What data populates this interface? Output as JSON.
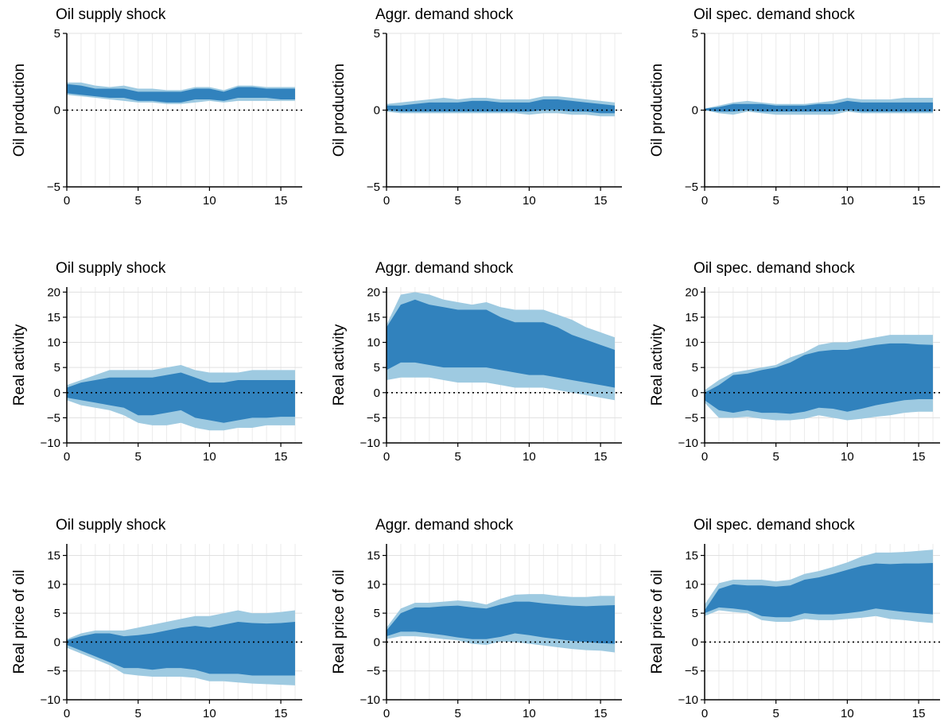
{
  "chart_data": [
    {
      "type": "band",
      "title": "Oil supply shock",
      "ylabel": "Oil production",
      "x": [
        0,
        1,
        2,
        3,
        4,
        5,
        6,
        7,
        8,
        9,
        10,
        11,
        12,
        13,
        14,
        15,
        16
      ],
      "xlim": [
        0,
        16.5
      ],
      "xticks": [
        0,
        5,
        10,
        15
      ],
      "ylim": [
        -5,
        5
      ],
      "yticks": [
        {
          "value": -5,
          "label": "−5"
        },
        0,
        5
      ],
      "grid": true,
      "reference_line": 0,
      "series": [
        {
          "color": "#9ecae1",
          "lower": [
            1.0,
            0.9,
            0.8,
            0.7,
            0.6,
            0.5,
            0.5,
            0.4,
            0.4,
            0.5,
            0.6,
            0.5,
            0.6,
            0.6,
            0.6,
            0.6,
            0.6
          ],
          "upper": [
            1.8,
            1.8,
            1.6,
            1.5,
            1.6,
            1.4,
            1.4,
            1.3,
            1.3,
            1.5,
            1.5,
            1.3,
            1.6,
            1.6,
            1.5,
            1.5,
            1.5
          ]
        },
        {
          "color": "#3182bd",
          "lower": [
            1.1,
            1.0,
            0.9,
            0.8,
            0.8,
            0.6,
            0.6,
            0.5,
            0.5,
            0.7,
            0.7,
            0.6,
            0.8,
            0.8,
            0.8,
            0.7,
            0.7
          ],
          "upper": [
            1.7,
            1.6,
            1.4,
            1.4,
            1.4,
            1.2,
            1.2,
            1.2,
            1.2,
            1.4,
            1.4,
            1.2,
            1.5,
            1.5,
            1.4,
            1.4,
            1.4
          ]
        }
      ]
    },
    {
      "type": "band",
      "title": "Aggr. demand shock",
      "ylabel": "Oil production",
      "x": [
        0,
        1,
        2,
        3,
        4,
        5,
        6,
        7,
        8,
        9,
        10,
        11,
        12,
        13,
        14,
        15,
        16
      ],
      "xlim": [
        0,
        16.5
      ],
      "xticks": [
        0,
        5,
        10,
        15
      ],
      "ylim": [
        -5,
        5
      ],
      "yticks": [
        {
          "value": -5,
          "label": "−5"
        },
        0,
        5
      ],
      "grid": true,
      "reference_line": 0,
      "series": [
        {
          "color": "#9ecae1",
          "lower": [
            -0.1,
            -0.2,
            -0.2,
            -0.2,
            -0.2,
            -0.2,
            -0.2,
            -0.2,
            -0.2,
            -0.2,
            -0.3,
            -0.2,
            -0.2,
            -0.3,
            -0.3,
            -0.4,
            -0.4
          ],
          "upper": [
            0.4,
            0.5,
            0.6,
            0.7,
            0.8,
            0.7,
            0.8,
            0.8,
            0.7,
            0.7,
            0.7,
            0.9,
            0.9,
            0.8,
            0.7,
            0.6,
            0.5
          ]
        },
        {
          "color": "#3182bd",
          "lower": [
            0.0,
            -0.1,
            -0.1,
            -0.1,
            -0.1,
            -0.1,
            -0.1,
            -0.1,
            -0.1,
            -0.1,
            -0.1,
            0.0,
            0.0,
            -0.1,
            -0.1,
            -0.2,
            -0.2
          ],
          "upper": [
            0.3,
            0.3,
            0.4,
            0.5,
            0.5,
            0.5,
            0.6,
            0.6,
            0.5,
            0.5,
            0.5,
            0.7,
            0.7,
            0.6,
            0.5,
            0.4,
            0.3
          ]
        }
      ]
    },
    {
      "type": "band",
      "title": "Oil spec. demand shock",
      "ylabel": "Oil production",
      "x": [
        0,
        1,
        2,
        3,
        4,
        5,
        6,
        7,
        8,
        9,
        10,
        11,
        12,
        13,
        14,
        15,
        16
      ],
      "xlim": [
        0,
        16.5
      ],
      "xticks": [
        0,
        5,
        10,
        15
      ],
      "ylim": [
        -5,
        5
      ],
      "yticks": [
        {
          "value": -5,
          "label": "−5"
        },
        0,
        5
      ],
      "grid": true,
      "reference_line": 0,
      "series": [
        {
          "color": "#9ecae1",
          "lower": [
            0.0,
            -0.2,
            -0.3,
            -0.1,
            -0.2,
            -0.3,
            -0.3,
            -0.3,
            -0.3,
            -0.3,
            -0.1,
            -0.2,
            -0.2,
            -0.2,
            -0.2,
            -0.2,
            -0.2
          ],
          "upper": [
            0.1,
            0.3,
            0.5,
            0.6,
            0.5,
            0.4,
            0.4,
            0.4,
            0.5,
            0.6,
            0.8,
            0.7,
            0.7,
            0.7,
            0.8,
            0.8,
            0.8
          ]
        },
        {
          "color": "#3182bd",
          "lower": [
            0.0,
            -0.1,
            -0.1,
            0.0,
            -0.1,
            -0.1,
            -0.1,
            -0.1,
            -0.1,
            -0.1,
            0.0,
            -0.1,
            -0.1,
            -0.1,
            -0.1,
            -0.1,
            -0.1
          ],
          "upper": [
            0.1,
            0.2,
            0.4,
            0.4,
            0.4,
            0.3,
            0.3,
            0.3,
            0.4,
            0.4,
            0.6,
            0.5,
            0.5,
            0.5,
            0.5,
            0.5,
            0.5
          ]
        }
      ]
    },
    {
      "type": "band",
      "title": "Oil supply shock",
      "ylabel": "Real activity",
      "x": [
        0,
        1,
        2,
        3,
        4,
        5,
        6,
        7,
        8,
        9,
        10,
        11,
        12,
        13,
        14,
        15,
        16
      ],
      "xlim": [
        0,
        16.5
      ],
      "xticks": [
        0,
        5,
        10,
        15
      ],
      "ylim": [
        -10,
        21
      ],
      "yticks": [
        {
          "value": -10,
          "label": "−10"
        },
        {
          "value": -5,
          "label": "−5"
        },
        0,
        5,
        10,
        15,
        20
      ],
      "grid": true,
      "reference_line": 0,
      "series": [
        {
          "color": "#9ecae1",
          "lower": [
            -1.5,
            -2.5,
            -3,
            -3.5,
            -4.5,
            -6,
            -6.5,
            -6.5,
            -6,
            -7,
            -7.5,
            -7.5,
            -7,
            -7,
            -6.5,
            -6.5,
            -6.5
          ],
          "upper": [
            1.5,
            2.5,
            3.5,
            4.5,
            4.5,
            4.5,
            4.5,
            5,
            5.5,
            4.5,
            4,
            4,
            4,
            4.5,
            4.5,
            4.5,
            4.5
          ]
        },
        {
          "color": "#3182bd",
          "lower": [
            -1,
            -1.5,
            -2,
            -2.5,
            -3,
            -4.5,
            -4.5,
            -4,
            -3.5,
            -5,
            -5.5,
            -6,
            -5.5,
            -5,
            -5,
            -4.8,
            -4.8
          ],
          "upper": [
            1,
            2,
            2.5,
            3,
            3,
            3,
            3,
            3.5,
            4,
            3,
            2,
            2,
            2.5,
            2.5,
            2.5,
            2.5,
            2.5
          ]
        }
      ]
    },
    {
      "type": "band",
      "title": "Aggr. demand shock",
      "ylabel": "Real activity",
      "x": [
        0,
        1,
        2,
        3,
        4,
        5,
        6,
        7,
        8,
        9,
        10,
        11,
        12,
        13,
        14,
        15,
        16
      ],
      "xlim": [
        0,
        16.5
      ],
      "xticks": [
        0,
        5,
        10,
        15
      ],
      "ylim": [
        -10,
        21
      ],
      "yticks": [
        {
          "value": -10,
          "label": "−10"
        },
        {
          "value": -5,
          "label": "−5"
        },
        0,
        5,
        10,
        15,
        20
      ],
      "grid": true,
      "reference_line": 0,
      "series": [
        {
          "color": "#9ecae1",
          "lower": [
            2.5,
            3,
            3,
            3,
            2.5,
            2,
            2,
            2,
            1.5,
            1,
            1,
            1,
            0.5,
            0,
            -0.5,
            -1,
            -1.5
          ],
          "upper": [
            13.5,
            19.5,
            20,
            19.5,
            18.5,
            18,
            17.5,
            18,
            17,
            16.5,
            16.5,
            16.5,
            15.5,
            14.5,
            13,
            12,
            11
          ]
        },
        {
          "color": "#3182bd",
          "lower": [
            4.5,
            6,
            6,
            5.5,
            5,
            5,
            5,
            5,
            4.5,
            4,
            3.5,
            3.5,
            3,
            2.5,
            2,
            1.5,
            1
          ],
          "upper": [
            13,
            17.5,
            18.5,
            17.5,
            17,
            16.5,
            16.5,
            16.5,
            15,
            14,
            14,
            14,
            13,
            11.5,
            10.5,
            9.5,
            8.5
          ]
        }
      ]
    },
    {
      "type": "band",
      "title": "Oil spec. demand shock",
      "ylabel": "Real activity",
      "x": [
        0,
        1,
        2,
        3,
        4,
        5,
        6,
        7,
        8,
        9,
        10,
        11,
        12,
        13,
        14,
        15,
        16
      ],
      "xlim": [
        0,
        16.5
      ],
      "xticks": [
        0,
        5,
        10,
        15
      ],
      "ylim": [
        -10,
        21
      ],
      "yticks": [
        {
          "value": -10,
          "label": "−10"
        },
        {
          "value": -5,
          "label": "−5"
        },
        0,
        5,
        10,
        15,
        20
      ],
      "grid": true,
      "reference_line": 0,
      "series": [
        {
          "color": "#9ecae1",
          "lower": [
            -2,
            -5,
            -5,
            -4.8,
            -5.2,
            -5.5,
            -5.5,
            -5.2,
            -4.5,
            -5,
            -5.5,
            -5.2,
            -4.8,
            -4.5,
            -4,
            -3.8,
            -3.8
          ],
          "upper": [
            0.5,
            2.5,
            4,
            4.5,
            5,
            5.5,
            7,
            8,
            9.5,
            10,
            10,
            10.5,
            11,
            11.5,
            11.5,
            11.5,
            11.5
          ]
        },
        {
          "color": "#3182bd",
          "lower": [
            -1.5,
            -3.5,
            -4,
            -3.5,
            -4,
            -4,
            -4.2,
            -3.8,
            -3,
            -3.2,
            -3.8,
            -3.2,
            -2.5,
            -2,
            -1.5,
            -1.3,
            -1.3
          ],
          "upper": [
            0,
            1.5,
            3.5,
            3.8,
            4.5,
            5,
            6,
            7.5,
            8.2,
            8.5,
            8.5,
            9,
            9.5,
            9.8,
            9.8,
            9.6,
            9.5
          ]
        }
      ]
    },
    {
      "type": "band",
      "title": "Oil supply shock",
      "ylabel": "Real price of oil",
      "x": [
        0,
        1,
        2,
        3,
        4,
        5,
        6,
        7,
        8,
        9,
        10,
        11,
        12,
        13,
        14,
        15,
        16
      ],
      "xlim": [
        0,
        16.5
      ],
      "xticks": [
        0,
        5,
        10,
        15
      ],
      "ylim": [
        -10,
        17
      ],
      "yticks": [
        {
          "value": -10,
          "label": "−10"
        },
        {
          "value": -5,
          "label": "−5"
        },
        0,
        5,
        10,
        15
      ],
      "grid": true,
      "reference_line": 0,
      "series": [
        {
          "color": "#9ecae1",
          "lower": [
            -1,
            -2,
            -3,
            -4,
            -5.5,
            -5.8,
            -6,
            -6,
            -6,
            -6.2,
            -6.8,
            -6.8,
            -7,
            -7.2,
            -7.3,
            -7.4,
            -7.5
          ],
          "upper": [
            0.5,
            1.5,
            2,
            2,
            2,
            2.5,
            3,
            3.5,
            4,
            4.5,
            4.5,
            5,
            5.5,
            5,
            5,
            5.2,
            5.5
          ]
        },
        {
          "color": "#3182bd",
          "lower": [
            -0.5,
            -1.5,
            -2.5,
            -3.5,
            -4.5,
            -4.5,
            -4.8,
            -4.5,
            -4.5,
            -4.8,
            -5.5,
            -5.5,
            -5.5,
            -5.8,
            -5.8,
            -5.8,
            -5.8
          ],
          "upper": [
            0.3,
            1,
            1.5,
            1.5,
            1,
            1.2,
            1.5,
            2,
            2.5,
            2.8,
            2.5,
            3,
            3.5,
            3.3,
            3.2,
            3.3,
            3.5
          ]
        }
      ]
    },
    {
      "type": "band",
      "title": "Aggr. demand shock",
      "ylabel": "Real price of oil",
      "x": [
        0,
        1,
        2,
        3,
        4,
        5,
        6,
        7,
        8,
        9,
        10,
        11,
        12,
        13,
        14,
        15,
        16
      ],
      "xlim": [
        0,
        16.5
      ],
      "xticks": [
        0,
        5,
        10,
        15
      ],
      "ylim": [
        -10,
        17
      ],
      "yticks": [
        {
          "value": -10,
          "label": "−10"
        },
        {
          "value": -5,
          "label": "−5"
        },
        0,
        5,
        10,
        15
      ],
      "grid": true,
      "reference_line": 0,
      "series": [
        {
          "color": "#9ecae1",
          "lower": [
            0.5,
            1,
            1,
            0.8,
            0.5,
            0.3,
            -0.3,
            -0.5,
            0.1,
            0,
            -0.3,
            -0.6,
            -0.9,
            -1.2,
            -1.4,
            -1.5,
            -1.8
          ],
          "upper": [
            2.5,
            5.8,
            6.8,
            6.8,
            7,
            7.2,
            7,
            6.5,
            7.5,
            8.2,
            8.3,
            8.3,
            8,
            7.8,
            7.8,
            8,
            8
          ]
        },
        {
          "color": "#3182bd",
          "lower": [
            1,
            1.8,
            1.8,
            1.5,
            1.2,
            0.8,
            0.5,
            0.5,
            0.9,
            1.5,
            1.2,
            0.8,
            0.5,
            0.2,
            0,
            -0.2,
            -0.3
          ],
          "upper": [
            2,
            5,
            6,
            6,
            6.2,
            6.3,
            6,
            5.8,
            6.5,
            7,
            7,
            6.7,
            6.5,
            6.3,
            6.2,
            6.3,
            6.4
          ]
        }
      ]
    },
    {
      "type": "band",
      "title": "Oil spec. demand shock",
      "ylabel": "Real price of oil",
      "x": [
        0,
        1,
        2,
        3,
        4,
        5,
        6,
        7,
        8,
        9,
        10,
        11,
        12,
        13,
        14,
        15,
        16
      ],
      "xlim": [
        0,
        16.5
      ],
      "xticks": [
        0,
        5,
        10,
        15
      ],
      "ylim": [
        -10,
        17
      ],
      "yticks": [
        {
          "value": -10,
          "label": "−10"
        },
        {
          "value": -5,
          "label": "−5"
        },
        0,
        5,
        10,
        15
      ],
      "grid": true,
      "reference_line": 0,
      "series": [
        {
          "color": "#9ecae1",
          "lower": [
            4.5,
            5.5,
            5.2,
            5,
            3.8,
            3.5,
            3.5,
            4,
            3.8,
            3.8,
            4,
            4.2,
            4.5,
            4,
            3.8,
            3.5,
            3.3
          ],
          "upper": [
            6.5,
            10.2,
            10.8,
            10.8,
            10.8,
            10.5,
            10.8,
            11.8,
            12.3,
            13,
            13.8,
            14.8,
            15.5,
            15.5,
            15.6,
            15.8,
            16
          ]
        },
        {
          "color": "#3182bd",
          "lower": [
            5,
            6,
            5.8,
            5.5,
            4.5,
            4.3,
            4.3,
            5,
            4.8,
            4.8,
            5,
            5.3,
            5.8,
            5.5,
            5.2,
            5,
            4.8
          ],
          "upper": [
            5.5,
            9.2,
            10,
            9.8,
            9.8,
            9.6,
            9.8,
            10.8,
            11.2,
            11.8,
            12.5,
            13.2,
            13.6,
            13.5,
            13.6,
            13.6,
            13.7
          ]
        }
      ]
    }
  ]
}
